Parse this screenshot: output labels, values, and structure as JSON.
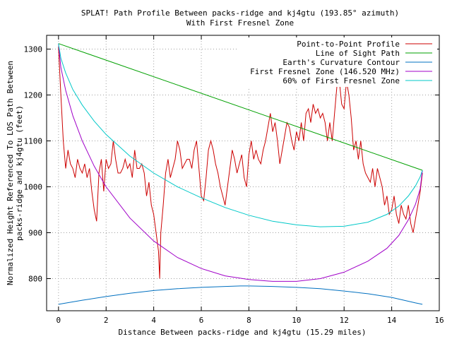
{
  "chart_data": {
    "type": "line",
    "title": "SPLAT! Path Profile Between packs-ridge and kj4gtu (193.85° azimuth)",
    "subtitle": "With First Fresnel Zone",
    "xlabel": "Distance Between packs-ridge and kj4gtu (15.29 miles)",
    "ylabel_line1": "Normalized Height Referenced To LOS Path Between",
    "ylabel_line2": "packs-ridge and kj4gtu (feet)",
    "xlim": [
      -0.5,
      16
    ],
    "ylim": [
      730,
      1330
    ],
    "x_ticks": [
      0,
      2,
      4,
      6,
      8,
      10,
      12,
      14,
      16
    ],
    "y_ticks": [
      800,
      900,
      1000,
      1100,
      1200,
      1300
    ],
    "grid": true,
    "legend_position": "top-right",
    "series": [
      {
        "name": "Point-to-Point Profile",
        "color": "#cc0000",
        "x": [
          0,
          0.1,
          0.2,
          0.3,
          0.4,
          0.5,
          0.6,
          0.7,
          0.8,
          0.9,
          1.0,
          1.1,
          1.2,
          1.3,
          1.4,
          1.5,
          1.6,
          1.7,
          1.8,
          1.9,
          2.0,
          2.1,
          2.2,
          2.3,
          2.4,
          2.5,
          2.6,
          2.7,
          2.8,
          2.9,
          3.0,
          3.1,
          3.2,
          3.3,
          3.4,
          3.5,
          3.6,
          3.7,
          3.8,
          3.9,
          4.0,
          4.1,
          4.2,
          4.25,
          4.3,
          4.4,
          4.5,
          4.6,
          4.7,
          4.8,
          4.9,
          5.0,
          5.1,
          5.2,
          5.3,
          5.4,
          5.5,
          5.6,
          5.7,
          5.8,
          5.9,
          6.0,
          6.1,
          6.2,
          6.3,
          6.4,
          6.5,
          6.6,
          6.7,
          6.8,
          6.9,
          7.0,
          7.1,
          7.2,
          7.3,
          7.4,
          7.5,
          7.6,
          7.7,
          7.8,
          7.9,
          8.0,
          8.1,
          8.2,
          8.3,
          8.4,
          8.5,
          8.6,
          8.7,
          8.8,
          8.9,
          9.0,
          9.1,
          9.2,
          9.3,
          9.4,
          9.5,
          9.6,
          9.7,
          9.8,
          9.9,
          10.0,
          10.1,
          10.2,
          10.3,
          10.4,
          10.5,
          10.6,
          10.7,
          10.8,
          10.9,
          11.0,
          11.1,
          11.2,
          11.3,
          11.4,
          11.5,
          11.6,
          11.7,
          11.8,
          11.9,
          12.0,
          12.1,
          12.2,
          12.3,
          12.4,
          12.5,
          12.6,
          12.7,
          12.8,
          12.9,
          13.0,
          13.1,
          13.2,
          13.3,
          13.4,
          13.5,
          13.6,
          13.7,
          13.8,
          13.9,
          14.0,
          14.1,
          14.2,
          14.3,
          14.4,
          14.5,
          14.6,
          14.7,
          14.8,
          14.9,
          15.0,
          15.1,
          15.2,
          15.29
        ],
        "y": [
          1305,
          1200,
          1100,
          1040,
          1080,
          1050,
          1040,
          1020,
          1060,
          1040,
          1030,
          1050,
          1020,
          1040,
          990,
          950,
          925,
          1030,
          1060,
          990,
          1060,
          1040,
          1050,
          1100,
          1060,
          1030,
          1030,
          1040,
          1060,
          1040,
          1050,
          1020,
          1080,
          1040,
          1040,
          1050,
          1030,
          980,
          1010,
          960,
          940,
          900,
          860,
          800,
          900,
          960,
          1030,
          1060,
          1020,
          1040,
          1060,
          1100,
          1080,
          1040,
          1050,
          1060,
          1060,
          1040,
          1080,
          1100,
          1040,
          980,
          970,
          1020,
          1080,
          1100,
          1080,
          1050,
          1030,
          1000,
          980,
          960,
          1000,
          1040,
          1080,
          1060,
          1030,
          1050,
          1070,
          1020,
          1000,
          1070,
          1100,
          1060,
          1080,
          1060,
          1050,
          1080,
          1100,
          1130,
          1160,
          1120,
          1140,
          1100,
          1050,
          1080,
          1110,
          1140,
          1130,
          1100,
          1080,
          1120,
          1100,
          1140,
          1100,
          1160,
          1170,
          1140,
          1180,
          1160,
          1170,
          1150,
          1160,
          1140,
          1100,
          1140,
          1100,
          1160,
          1220,
          1230,
          1180,
          1170,
          1230,
          1200,
          1150,
          1080,
          1100,
          1060,
          1100,
          1050,
          1030,
          1020,
          1010,
          1040,
          1000,
          1040,
          1020,
          1000,
          960,
          980,
          940,
          950,
          980,
          940,
          920,
          960,
          940,
          930,
          960,
          920,
          900,
          930,
          960,
          990,
          1030
        ]
      },
      {
        "name": "Line of Sight Path",
        "color": "#00a000",
        "x": [
          0,
          15.29
        ],
        "y": [
          1312,
          1036
        ]
      },
      {
        "name": "Earth's Curvature Contour",
        "color": "#0070c0",
        "x": [
          0,
          1,
          2,
          3,
          4,
          5,
          6,
          7,
          7.645,
          8,
          9,
          10,
          11,
          12,
          13,
          14,
          15,
          15.29
        ],
        "y": [
          744,
          753,
          761,
          768,
          774,
          778,
          781,
          783,
          784,
          784,
          783,
          781,
          778,
          773,
          767,
          759,
          747,
          744
        ]
      },
      {
        "name": "First Fresnel Zone (146.520 MHz)",
        "color": "#a000c8",
        "x": [
          0,
          0.1,
          0.3,
          0.6,
          1.0,
          1.5,
          2.0,
          3.0,
          4.0,
          5.0,
          6.0,
          7.0,
          8.0,
          9.0,
          10.0,
          11.0,
          12.0,
          13.0,
          13.8,
          14.3,
          14.7,
          15.0,
          15.2,
          15.29
        ],
        "y": [
          1312,
          1260,
          1210,
          1155,
          1100,
          1045,
          1000,
          932,
          882,
          846,
          822,
          806,
          798,
          794,
          794,
          800,
          814,
          838,
          866,
          894,
          928,
          962,
          996,
          1036
        ]
      },
      {
        "name": "60% of First Fresnel Zone",
        "color": "#00c8c8",
        "x": [
          0,
          0.1,
          0.3,
          0.6,
          1.0,
          1.5,
          2.0,
          3.0,
          4.0,
          5.0,
          6.0,
          7.0,
          8.0,
          9.0,
          10.0,
          11.0,
          12.0,
          13.0,
          13.8,
          14.3,
          14.7,
          15.0,
          15.2,
          15.29
        ],
        "y": [
          1312,
          1280,
          1248,
          1212,
          1178,
          1143,
          1114,
          1067,
          1030,
          1000,
          976,
          955,
          938,
          925,
          917,
          913,
          914,
          923,
          940,
          958,
          980,
          1002,
          1022,
          1036
        ]
      }
    ]
  }
}
